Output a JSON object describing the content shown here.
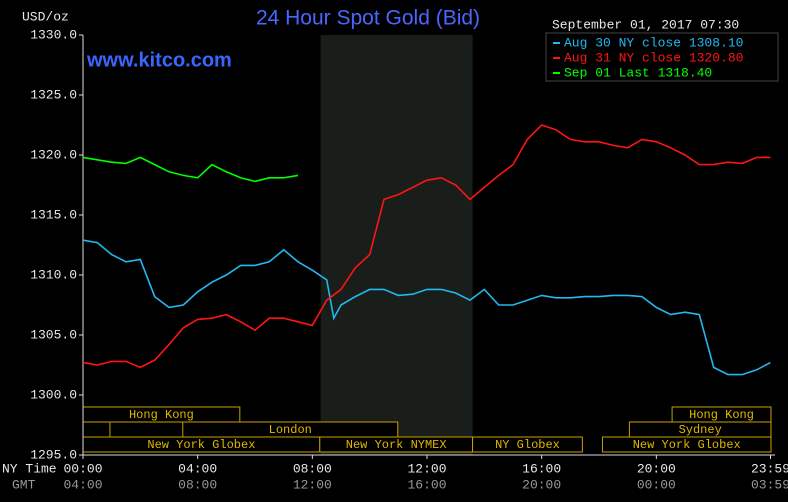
{
  "chart_data": {
    "type": "line",
    "title": "24 Hour Spot Gold (Bid)",
    "y_unit_label": "USD/oz",
    "timestamp": "September 01, 2017 07:30",
    "watermark": "www.kitco.com",
    "x_axis_label": "NY Time",
    "x2_axis_label": "GMT",
    "xlim": [
      0,
      24
    ],
    "xticks": [
      {
        "value": 0,
        "label": "00:00"
      },
      {
        "value": 4,
        "label": "04:00"
      },
      {
        "value": 8,
        "label": "08:00"
      },
      {
        "value": 12,
        "label": "12:00"
      },
      {
        "value": 16,
        "label": "16:00"
      },
      {
        "value": 20,
        "label": "20:00"
      },
      {
        "value": 23.983,
        "label": "23:59"
      }
    ],
    "x2tick_labels": [
      "04:00",
      "08:00",
      "12:00",
      "16:00",
      "20:00",
      "00:00",
      "03:59"
    ],
    "ylim": [
      1295,
      1330
    ],
    "yticks": [
      {
        "value": 1295,
        "label": "1295.0"
      },
      {
        "value": 1300,
        "label": "1300.0"
      },
      {
        "value": 1305,
        "label": "1305.0"
      },
      {
        "value": 1310,
        "label": "1310.0"
      },
      {
        "value": 1315,
        "label": "1315.0"
      },
      {
        "value": 1320,
        "label": "1320.0"
      },
      {
        "value": 1325,
        "label": "1325.0"
      },
      {
        "value": 1330,
        "label": "1330.0"
      }
    ],
    "grid": false,
    "legend_position": "top-right",
    "shaded_span": [
      8.29,
      13.59
    ],
    "series": [
      {
        "name": "Aug 30 NY close 1308.10",
        "color": "#22b8f0",
        "x": [
          0,
          0.5,
          1,
          1.5,
          2,
          2.5,
          3,
          3.5,
          4,
          4.5,
          5,
          5.5,
          6,
          6.5,
          7,
          7.5,
          8,
          8.5,
          8.75,
          9,
          9.5,
          10,
          10.5,
          11,
          11.5,
          12,
          12.5,
          13,
          13.5,
          14,
          14.5,
          15,
          15.5,
          16,
          16.5,
          17,
          17.5,
          18,
          18.5,
          19,
          19.5,
          20,
          20.5,
          21,
          21.5,
          22,
          22.5,
          23,
          23.5,
          23.98
        ],
        "values": [
          1312.9,
          1312.7,
          1311.7,
          1311.1,
          1311.3,
          1308.2,
          1307.3,
          1307.5,
          1308.6,
          1309.4,
          1310,
          1310.8,
          1310.8,
          1311.1,
          1312.1,
          1311.1,
          1310.4,
          1309.6,
          1306.4,
          1307.5,
          1308.2,
          1308.8,
          1308.8,
          1308.3,
          1308.4,
          1308.8,
          1308.8,
          1308.5,
          1307.9,
          1308.8,
          1307.5,
          1307.5,
          1307.9,
          1308.3,
          1308.1,
          1308.1,
          1308.2,
          1308.2,
          1308.3,
          1308.3,
          1308.2,
          1307.3,
          1306.7,
          1306.9,
          1306.7,
          1302.3,
          1301.7,
          1301.7,
          1302.1,
          1302.7
        ]
      },
      {
        "name": "Aug 31 NY close 1320.80",
        "color": "#ff1414",
        "x": [
          0,
          0.5,
          1,
          1.5,
          2,
          2.5,
          3,
          3.5,
          4,
          4.5,
          5,
          5.5,
          6,
          6.5,
          7,
          7.5,
          8,
          8.5,
          9,
          9.5,
          10,
          10.5,
          11,
          11.5,
          12,
          12.5,
          13,
          13.5,
          14,
          14.5,
          15,
          15.5,
          16,
          16.5,
          17,
          17.5,
          18,
          18.5,
          19,
          19.5,
          20,
          20.5,
          21,
          21.5,
          22,
          22.5,
          23,
          23.5,
          23.98
        ],
        "values": [
          1302.7,
          1302.5,
          1302.8,
          1302.8,
          1302.3,
          1302.9,
          1304.2,
          1305.6,
          1306.3,
          1306.4,
          1306.7,
          1306.1,
          1305.4,
          1306.4,
          1306.4,
          1306.1,
          1305.8,
          1307.9,
          1308.8,
          1310.6,
          1311.7,
          1316.3,
          1316.7,
          1317.3,
          1317.9,
          1318.1,
          1317.5,
          1316.3,
          1317.3,
          1318.3,
          1319.2,
          1321.3,
          1322.5,
          1322.1,
          1321.3,
          1321.1,
          1321.1,
          1320.8,
          1320.6,
          1321.3,
          1321.1,
          1320.6,
          1320,
          1319.2,
          1319.2,
          1319.4,
          1319.3,
          1319.8,
          1319.8
        ]
      },
      {
        "name": "Sep 01 Last 1318.40",
        "color": "#00ff00",
        "x": [
          0,
          0.5,
          1,
          1.5,
          2,
          2.5,
          3,
          3.5,
          4,
          4.5,
          5,
          5.5,
          6,
          6.5,
          7,
          7.5
        ],
        "values": [
          1319.8,
          1319.6,
          1319.4,
          1319.3,
          1319.8,
          1319.2,
          1318.6,
          1318.3,
          1318.1,
          1319.2,
          1318.6,
          1318.1,
          1317.8,
          1318.1,
          1318.1,
          1318.3
        ]
      }
    ],
    "sessions": [
      {
        "label": "Hong Kong",
        "row": 1,
        "start": 0,
        "end": 5.47
      },
      {
        "label": "Hong Kong",
        "row": 1,
        "start": 20.55,
        "end": 24
      },
      {
        "label": null,
        "row": 2,
        "start": 0,
        "end": 0.94
      },
      {
        "label": "London",
        "row": 2,
        "start": 3.48,
        "end": 10.98
      },
      {
        "label": "Sydney",
        "row": 2,
        "start": 19.06,
        "end": 24
      },
      {
        "label": "New York Globex",
        "row": 3,
        "start": 0,
        "end": 8.26
      },
      {
        "label": "New York NYMEX",
        "row": 3,
        "start": 8.26,
        "end": 13.59
      },
      {
        "label": "NY Globex",
        "row": 3,
        "start": 13.59,
        "end": 17.42
      },
      {
        "label": "New York Globex",
        "row": 3,
        "start": 18.12,
        "end": 24
      }
    ]
  }
}
